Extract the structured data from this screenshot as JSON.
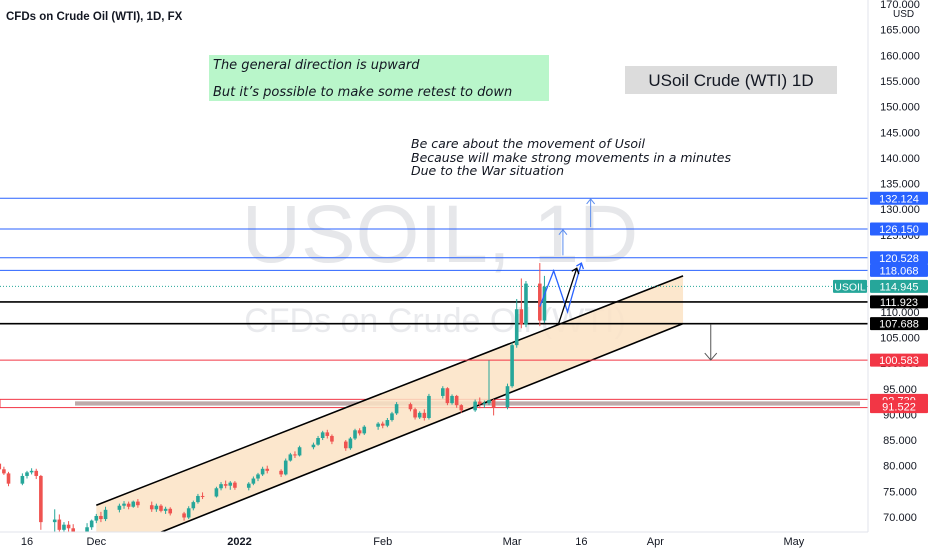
{
  "header": {
    "symbol_title": "CFDs on Crude Oil (WTI), 1D, FX",
    "currency": "USD"
  },
  "watermark": {
    "symbol": "USOIL, 1D",
    "description": "CFDs on Crude Oil (WTI)"
  },
  "annotations": {
    "green_box": [
      "The general direction is upward",
      "But it’s possible to make some retest to down"
    ],
    "title_box": "USoil Crude (WTI) 1D",
    "notes": [
      "Be care about the movement of Usoil",
      "Because will make strong movements in a minutes",
      "Due to the War situation"
    ]
  },
  "colors": {
    "up": "#26a69a",
    "down": "#ef5350",
    "resistance": "#2962ff",
    "support": "#000000",
    "danger": "#f23645",
    "channel_fill": "#fbe3c4",
    "green_box": "#b9f6ca"
  },
  "chart_data": {
    "type": "candlestick",
    "y_axis": {
      "range": [
        68.5,
        171.5
      ],
      "ticks": [
        70,
        75,
        80,
        85,
        90,
        95,
        100,
        105,
        110,
        115,
        120,
        125,
        130,
        135,
        140,
        145,
        150,
        155,
        160,
        165,
        170
      ],
      "tick_labels": [
        "70.000",
        "75.000",
        "80.000",
        "85.000",
        "90.000",
        "95.000",
        "100.000",
        "105.000",
        "110.000",
        "115.000",
        "120.000",
        "125.000",
        "130.000",
        "135.000",
        "140.000",
        "145.000",
        "150.000",
        "155.000",
        "160.000",
        "165.000",
        "170.000"
      ]
    },
    "x_axis": {
      "labels": [
        "16",
        "Dec",
        "2022",
        "Feb",
        "Mar",
        "16",
        "Apr",
        "May"
      ],
      "label_dates": [
        "2021-11-16",
        "2021-12-01",
        "2022-01-01",
        "2022-02-01",
        "2022-03-01",
        "2022-03-16",
        "2022-04-01",
        "2022-05-01"
      ],
      "range": [
        "2021-11-01",
        "2022-05-01"
      ]
    },
    "candles": [
      {
        "date": "2021-11-01",
        "o": 81.5,
        "h": 82.0,
        "l": 80.5,
        "c": 81.0
      },
      {
        "date": "2021-11-02",
        "o": 81.0,
        "h": 81.8,
        "l": 80.3,
        "c": 81.3
      },
      {
        "date": "2021-11-03",
        "o": 81.3,
        "h": 81.6,
        "l": 80.4,
        "c": 80.8
      },
      {
        "date": "2021-11-04",
        "o": 80.8,
        "h": 81.7,
        "l": 80.2,
        "c": 81.1
      },
      {
        "date": "2021-11-05",
        "o": 81.1,
        "h": 81.5,
        "l": 79.8,
        "c": 80.6
      },
      {
        "date": "2021-11-08",
        "o": 80.6,
        "h": 81.2,
        "l": 80.0,
        "c": 80.9
      },
      {
        "date": "2021-11-09",
        "o": 80.9,
        "h": 81.6,
        "l": 80.2,
        "c": 80.4
      },
      {
        "date": "2021-11-10",
        "o": 80.4,
        "h": 81.0,
        "l": 79.0,
        "c": 79.3
      },
      {
        "date": "2021-11-11",
        "o": 79.3,
        "h": 79.8,
        "l": 78.2,
        "c": 78.5
      },
      {
        "date": "2021-11-12",
        "o": 78.5,
        "h": 78.8,
        "l": 76.0,
        "c": 76.5
      },
      {
        "date": "2021-11-15",
        "o": 76.5,
        "h": 78.5,
        "l": 76.2,
        "c": 78.0
      },
      {
        "date": "2021-11-16",
        "o": 78.0,
        "h": 79.0,
        "l": 77.5,
        "c": 78.7
      },
      {
        "date": "2021-11-17",
        "o": 78.7,
        "h": 79.5,
        "l": 78.3,
        "c": 79.0
      },
      {
        "date": "2021-11-18",
        "o": 79.0,
        "h": 79.4,
        "l": 77.4,
        "c": 78.0
      },
      {
        "date": "2021-11-19",
        "o": 78.0,
        "h": 78.2,
        "l": 67.5,
        "c": 69.0
      },
      {
        "date": "2021-11-22",
        "o": 69.0,
        "h": 71.5,
        "l": 67.0,
        "c": 69.5
      },
      {
        "date": "2021-11-23",
        "o": 69.5,
        "h": 70.5,
        "l": 66.5,
        "c": 67.5
      },
      {
        "date": "2021-11-24",
        "o": 67.5,
        "h": 69.0,
        "l": 66.0,
        "c": 68.5
      },
      {
        "date": "2021-11-25",
        "o": 68.5,
        "h": 69.2,
        "l": 67.0,
        "c": 67.8
      },
      {
        "date": "2021-11-26",
        "o": 67.8,
        "h": 68.6,
        "l": 66.3,
        "c": 66.8
      },
      {
        "date": "2021-11-29",
        "o": 66.8,
        "h": 68.8,
        "l": 66.5,
        "c": 68.0
      },
      {
        "date": "2021-11-30",
        "o": 68.0,
        "h": 69.5,
        "l": 67.5,
        "c": 69.3
      },
      {
        "date": "2021-12-01",
        "o": 69.3,
        "h": 70.6,
        "l": 68.8,
        "c": 70.2
      },
      {
        "date": "2021-12-02",
        "o": 70.2,
        "h": 71.0,
        "l": 69.0,
        "c": 69.6
      },
      {
        "date": "2021-12-03",
        "o": 69.6,
        "h": 72.0,
        "l": 69.2,
        "c": 71.4
      },
      {
        "date": "2021-12-06",
        "o": 71.4,
        "h": 72.6,
        "l": 70.9,
        "c": 72.2
      },
      {
        "date": "2021-12-07",
        "o": 72.2,
        "h": 73.1,
        "l": 71.6,
        "c": 72.6
      },
      {
        "date": "2021-12-08",
        "o": 72.6,
        "h": 73.0,
        "l": 71.5,
        "c": 72.0
      },
      {
        "date": "2021-12-09",
        "o": 72.0,
        "h": 73.2,
        "l": 71.8,
        "c": 73.0
      },
      {
        "date": "2021-12-10",
        "o": 73.0,
        "h": 73.5,
        "l": 71.8,
        "c": 72.3
      },
      {
        "date": "2021-12-13",
        "o": 72.3,
        "h": 73.0,
        "l": 71.0,
        "c": 71.5
      },
      {
        "date": "2021-12-14",
        "o": 71.5,
        "h": 72.6,
        "l": 71.0,
        "c": 72.2
      },
      {
        "date": "2021-12-15",
        "o": 72.2,
        "h": 72.5,
        "l": 70.9,
        "c": 71.2
      },
      {
        "date": "2021-12-16",
        "o": 71.2,
        "h": 72.0,
        "l": 70.6,
        "c": 71.6
      },
      {
        "date": "2021-12-17",
        "o": 71.6,
        "h": 71.9,
        "l": 70.3,
        "c": 70.7
      },
      {
        "date": "2021-12-20",
        "o": 70.7,
        "h": 71.0,
        "l": 69.3,
        "c": 69.9
      },
      {
        "date": "2021-12-21",
        "o": 69.9,
        "h": 72.1,
        "l": 69.6,
        "c": 71.7
      },
      {
        "date": "2021-12-22",
        "o": 71.7,
        "h": 73.2,
        "l": 71.3,
        "c": 72.9
      },
      {
        "date": "2021-12-23",
        "o": 72.9,
        "h": 74.5,
        "l": 72.6,
        "c": 74.1
      },
      {
        "date": "2021-12-24",
        "o": 74.1,
        "h": 74.8,
        "l": 73.5,
        "c": 74.0
      },
      {
        "date": "2021-12-27",
        "o": 74.0,
        "h": 75.9,
        "l": 73.8,
        "c": 75.6
      },
      {
        "date": "2021-12-28",
        "o": 75.6,
        "h": 76.8,
        "l": 75.2,
        "c": 76.4
      },
      {
        "date": "2021-12-29",
        "o": 76.4,
        "h": 77.1,
        "l": 75.6,
        "c": 76.1
      },
      {
        "date": "2021-12-30",
        "o": 76.1,
        "h": 77.0,
        "l": 75.3,
        "c": 76.7
      },
      {
        "date": "2021-12-31",
        "o": 76.7,
        "h": 77.0,
        "l": 75.3,
        "c": 75.7
      },
      {
        "date": "2022-01-03",
        "o": 75.7,
        "h": 76.8,
        "l": 75.2,
        "c": 76.5
      },
      {
        "date": "2022-01-04",
        "o": 76.5,
        "h": 77.9,
        "l": 76.2,
        "c": 77.5
      },
      {
        "date": "2022-01-05",
        "o": 77.5,
        "h": 78.6,
        "l": 77.0,
        "c": 78.3
      },
      {
        "date": "2022-01-06",
        "o": 78.3,
        "h": 79.8,
        "l": 78.0,
        "c": 79.4
      },
      {
        "date": "2022-01-07",
        "o": 79.4,
        "h": 80.0,
        "l": 78.5,
        "c": 79.0
      },
      {
        "date": "2022-01-10",
        "o": 79.0,
        "h": 79.3,
        "l": 77.8,
        "c": 78.3
      },
      {
        "date": "2022-01-11",
        "o": 78.3,
        "h": 81.4,
        "l": 78.1,
        "c": 81.0
      },
      {
        "date": "2022-01-12",
        "o": 81.0,
        "h": 82.5,
        "l": 80.8,
        "c": 82.2
      },
      {
        "date": "2022-01-13",
        "o": 82.2,
        "h": 82.8,
        "l": 81.5,
        "c": 82.0
      },
      {
        "date": "2022-01-14",
        "o": 82.0,
        "h": 83.9,
        "l": 81.8,
        "c": 83.6
      },
      {
        "date": "2022-01-17",
        "o": 83.6,
        "h": 84.5,
        "l": 83.2,
        "c": 84.1
      },
      {
        "date": "2022-01-18",
        "o": 84.1,
        "h": 85.8,
        "l": 83.9,
        "c": 85.4
      },
      {
        "date": "2022-01-19",
        "o": 85.4,
        "h": 86.8,
        "l": 85.0,
        "c": 86.5
      },
      {
        "date": "2022-01-20",
        "o": 86.5,
        "h": 87.0,
        "l": 85.3,
        "c": 85.8
      },
      {
        "date": "2022-01-21",
        "o": 85.8,
        "h": 86.1,
        "l": 84.2,
        "c": 84.7
      },
      {
        "date": "2022-01-24",
        "o": 84.7,
        "h": 85.0,
        "l": 82.9,
        "c": 83.4
      },
      {
        "date": "2022-01-25",
        "o": 83.4,
        "h": 85.6,
        "l": 83.1,
        "c": 85.3
      },
      {
        "date": "2022-01-26",
        "o": 85.3,
        "h": 87.2,
        "l": 85.0,
        "c": 86.9
      },
      {
        "date": "2022-01-27",
        "o": 86.9,
        "h": 87.3,
        "l": 85.9,
        "c": 86.3
      },
      {
        "date": "2022-01-28",
        "o": 86.3,
        "h": 87.9,
        "l": 86.0,
        "c": 87.6
      },
      {
        "date": "2022-01-31",
        "o": 87.6,
        "h": 88.5,
        "l": 87.0,
        "c": 88.2
      },
      {
        "date": "2022-02-01",
        "o": 88.2,
        "h": 88.6,
        "l": 87.3,
        "c": 87.8
      },
      {
        "date": "2022-02-02",
        "o": 87.8,
        "h": 89.3,
        "l": 87.5,
        "c": 88.9
      },
      {
        "date": "2022-02-03",
        "o": 88.9,
        "h": 90.5,
        "l": 88.6,
        "c": 90.2
      },
      {
        "date": "2022-02-04",
        "o": 90.2,
        "h": 92.4,
        "l": 89.9,
        "c": 92.0
      },
      {
        "date": "2022-02-07",
        "o": 92.0,
        "h": 92.3,
        "l": 90.6,
        "c": 91.0
      },
      {
        "date": "2022-02-08",
        "o": 91.0,
        "h": 91.3,
        "l": 89.0,
        "c": 89.4
      },
      {
        "date": "2022-02-09",
        "o": 89.4,
        "h": 90.6,
        "l": 89.1,
        "c": 90.3
      },
      {
        "date": "2022-02-10",
        "o": 90.3,
        "h": 91.0,
        "l": 88.8,
        "c": 89.3
      },
      {
        "date": "2022-02-11",
        "o": 89.3,
        "h": 94.0,
        "l": 89.0,
        "c": 93.6
      },
      {
        "date": "2022-02-14",
        "o": 93.6,
        "h": 95.5,
        "l": 93.1,
        "c": 95.1
      },
      {
        "date": "2022-02-15",
        "o": 95.1,
        "h": 95.3,
        "l": 91.8,
        "c": 92.2
      },
      {
        "date": "2022-02-16",
        "o": 92.2,
        "h": 93.9,
        "l": 91.9,
        "c": 93.6
      },
      {
        "date": "2022-02-17",
        "o": 93.6,
        "h": 93.8,
        "l": 91.3,
        "c": 91.8
      },
      {
        "date": "2022-02-18",
        "o": 91.8,
        "h": 92.0,
        "l": 90.3,
        "c": 90.8
      },
      {
        "date": "2022-02-21",
        "o": 90.8,
        "h": 92.9,
        "l": 90.5,
        "c": 92.5
      },
      {
        "date": "2022-02-22",
        "o": 92.5,
        "h": 93.3,
        "l": 91.2,
        "c": 92.0
      },
      {
        "date": "2022-02-23",
        "o": 92.0,
        "h": 92.7,
        "l": 91.3,
        "c": 92.2
      },
      {
        "date": "2022-02-24",
        "o": 92.2,
        "h": 100.5,
        "l": 91.8,
        "c": 92.8
      },
      {
        "date": "2022-02-25",
        "o": 92.8,
        "h": 93.0,
        "l": 89.8,
        "c": 91.4
      },
      {
        "date": "2022-02-28",
        "o": 91.4,
        "h": 96.0,
        "l": 91.0,
        "c": 95.5
      },
      {
        "date": "2022-03-01",
        "o": 95.5,
        "h": 104.0,
        "l": 95.2,
        "c": 103.5
      },
      {
        "date": "2022-03-02",
        "o": 103.5,
        "h": 112.5,
        "l": 103.0,
        "c": 110.5
      },
      {
        "date": "2022-03-03",
        "o": 110.5,
        "h": 116.5,
        "l": 106.8,
        "c": 107.5
      },
      {
        "date": "2022-03-04",
        "o": 107.5,
        "h": 116.0,
        "l": 107.0,
        "c": 115.5
      },
      {
        "date": "2022-03-07",
        "o": 115.5,
        "h": 119.5,
        "l": 107.2,
        "c": 108.3
      },
      {
        "date": "2022-03-08",
        "o": 108.3,
        "h": 117.0,
        "l": 107.8,
        "c": 114.9
      }
    ],
    "horizontal_levels": [
      {
        "value": 132.124,
        "label": "132.124",
        "kind": "resistance"
      },
      {
        "value": 126.15,
        "label": "126.150",
        "kind": "resistance"
      },
      {
        "value": 120.528,
        "label": "120.528",
        "kind": "resistance"
      },
      {
        "value": 118.068,
        "label": "118.068",
        "kind": "resistance"
      },
      {
        "value": 111.923,
        "label": "111.923",
        "kind": "support"
      },
      {
        "value": 107.688,
        "label": "107.688",
        "kind": "support"
      },
      {
        "value": 100.583,
        "label": "100.583",
        "kind": "danger"
      }
    ],
    "zone": {
      "top": 92.739,
      "bottom": 91.522,
      "top_label": "92.739",
      "bottom_label": "91.522"
    },
    "last_price": {
      "name": "USOIL",
      "value": 114.945,
      "label": "114.945"
    },
    "channel": {
      "start": "2021-12-01",
      "end": "2022-04-07",
      "upper": [
        72.3,
        117.0
      ],
      "lower": [
        62.0,
        107.7
      ]
    },
    "projection_blue": [
      [
        "2022-03-07",
        111.0
      ],
      [
        "2022-03-10",
        118.0
      ],
      [
        "2022-03-13",
        110.0
      ],
      [
        "2022-03-16",
        119.5
      ]
    ],
    "projection_black": [
      [
        "2022-03-11",
        107.5
      ],
      [
        "2022-03-15",
        118.5
      ]
    ],
    "target_arrows_up": [
      {
        "date": "2022-03-12",
        "from": 121.0,
        "to": 126.0
      },
      {
        "date": "2022-03-18",
        "from": 126.5,
        "to": 132.0
      }
    ],
    "target_arrow_down": {
      "date": "2022-04-13",
      "from": 107.5,
      "to": 100.6
    }
  }
}
